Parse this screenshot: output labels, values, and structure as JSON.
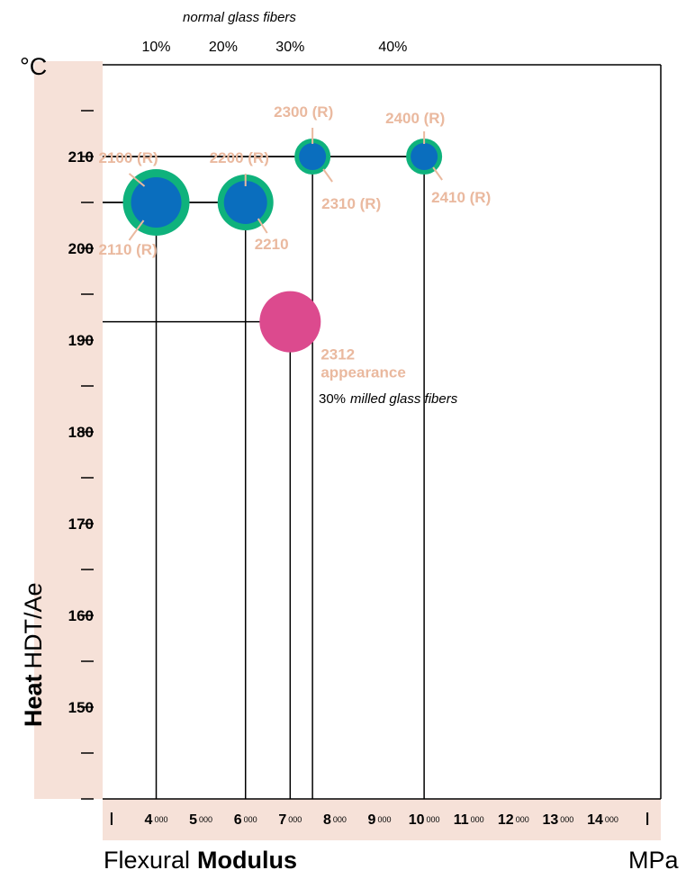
{
  "chart_data": {
    "type": "scatter",
    "ylabel_bold": "Heat",
    "ylabel_rest": "HDT/Ae",
    "y_unit": "°C",
    "xlabel_regular": "Flexural",
    "xlabel_bold": "Modulus",
    "x_unit": "MPa",
    "xlim": [
      2800,
      15300
    ],
    "ylim": [
      140,
      220
    ],
    "y_ticks": [
      150,
      160,
      170,
      180,
      190,
      200,
      210
    ],
    "x_ticks": [
      {
        "value": 4000,
        "main": "4",
        "sup": "000"
      },
      {
        "value": 5000,
        "main": "5",
        "sup": "000"
      },
      {
        "value": 6000,
        "main": "6",
        "sup": "000"
      },
      {
        "value": 7000,
        "main": "7",
        "sup": "000"
      },
      {
        "value": 8000,
        "main": "8",
        "sup": "000"
      },
      {
        "value": 9000,
        "main": "9",
        "sup": "000"
      },
      {
        "value": 10000,
        "main": "10",
        "sup": "000"
      },
      {
        "value": 11000,
        "main": "11",
        "sup": "000"
      },
      {
        "value": 12000,
        "main": "12",
        "sup": "000"
      },
      {
        "value": 13000,
        "main": "13",
        "sup": "000"
      },
      {
        "value": 14000,
        "main": "14",
        "sup": "000"
      }
    ],
    "top_axis": {
      "caption": "normal glass fibers",
      "ticks": [
        {
          "value": 4000,
          "label": "10%"
        },
        {
          "value": 5500,
          "label": "20%"
        },
        {
          "value": 7000,
          "label": "30%"
        },
        {
          "value": 9300,
          "label": "40%"
        }
      ]
    },
    "points": [
      {
        "id": "2100-2110",
        "x": 4000,
        "y": 205,
        "labels": [
          "2100 (R)",
          "2110 (R)"
        ],
        "inner_color": "#0a6ebe",
        "ring_color": "#0fb27c",
        "size": "large"
      },
      {
        "id": "2200-2210",
        "x": 6000,
        "y": 205,
        "labels": [
          "2200 (R)",
          "2210"
        ],
        "inner_color": "#0a6ebe",
        "ring_color": "#0fb27c",
        "size": "medium"
      },
      {
        "id": "2300-2310",
        "x": 7500,
        "y": 210,
        "labels": [
          "2300 (R)",
          "2310 (R)"
        ],
        "inner_color": "#0a6ebe",
        "ring_color": "#0fb27c",
        "size": "small"
      },
      {
        "id": "2400-2410",
        "x": 10000,
        "y": 210,
        "labels": [
          "2400 (R)",
          "2410 (R)"
        ],
        "inner_color": "#0a6ebe",
        "ring_color": "#0fb27c",
        "size": "small"
      },
      {
        "id": "2312",
        "x": 7000,
        "y": 192,
        "labels": [
          "2312",
          "appearance"
        ],
        "inner_color": "#dc4a8e",
        "ring_color": "",
        "size": "large"
      }
    ],
    "note_2312": {
      "percent": "30%",
      "text": "milled glass fibers"
    },
    "colors": {
      "band": "#f6e1d8",
      "label": "#eab99f",
      "glass_inner": "#0a6ebe",
      "glass_ring": "#0fb27c",
      "milled": "#dc4a8e"
    }
  }
}
